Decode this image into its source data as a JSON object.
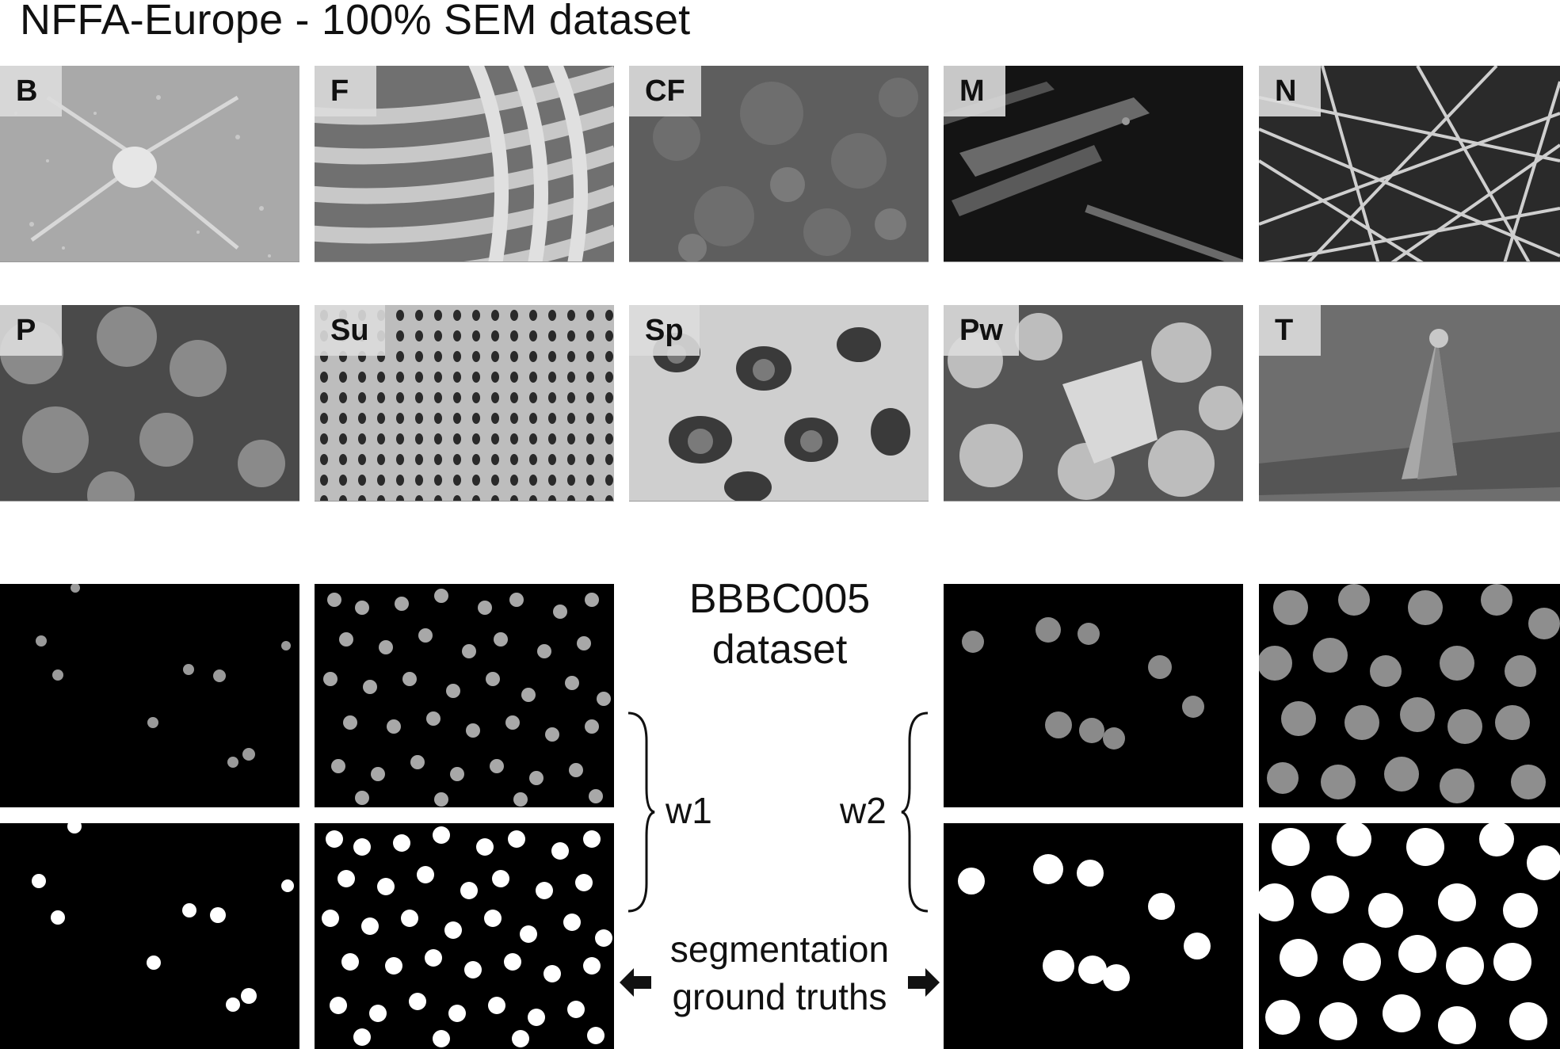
{
  "title": "NFFA-Europe - 100% SEM dataset",
  "sem_panels": [
    {
      "label": "B"
    },
    {
      "label": "F"
    },
    {
      "label": "CF"
    },
    {
      "label": "M"
    },
    {
      "label": "N"
    },
    {
      "label": "P"
    },
    {
      "label": "Su"
    },
    {
      "label": "Sp"
    },
    {
      "label": "Pw"
    },
    {
      "label": "T"
    }
  ],
  "bbbc": {
    "title_line1": "BBBC005",
    "title_line2": "dataset",
    "w1_label": "w1",
    "w2_label": "w2",
    "seg_line1": "segmentation",
    "seg_line2": "ground truths"
  }
}
